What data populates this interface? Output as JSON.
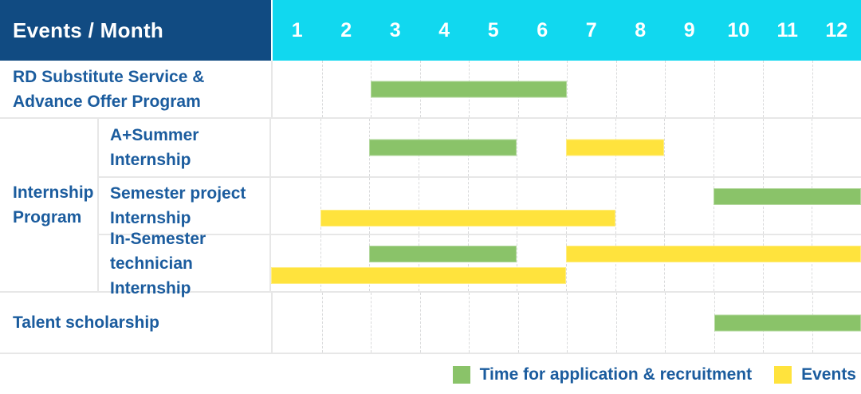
{
  "header": {
    "title": "Events / Month"
  },
  "colors": {
    "header_bg": "#114B82",
    "months_bg": "#11D8EF",
    "label_text": "#1B5C9E",
    "green": "#8AC369",
    "yellow": "#FFE33D",
    "grid_line": "#E7E7E7"
  },
  "legend": {
    "items": [
      {
        "key": "green",
        "color": "#8AC369",
        "label": "Time for application & recruitment"
      },
      {
        "key": "yellow",
        "color": "#FFE33D",
        "label": "Events"
      }
    ]
  },
  "chart_data": {
    "type": "gantt",
    "title": "Events / Month",
    "x_axis": {
      "label": "Month",
      "ticks": [
        1,
        2,
        3,
        4,
        5,
        6,
        7,
        8,
        9,
        10,
        11,
        12
      ],
      "range": [
        1,
        12
      ]
    },
    "series_legend": [
      {
        "key": "green",
        "color": "#8AC369",
        "label": "Time for application & recruitment"
      },
      {
        "key": "yellow",
        "color": "#FFE33D",
        "label": "Events"
      }
    ],
    "groups": [
      {
        "label": "Internship\nProgram",
        "row_indexes": [
          1,
          2,
          3
        ]
      }
    ],
    "rows": [
      {
        "label": "RD Substitute Service &\nAdvance Offer Program",
        "bars": [
          {
            "series": "Time for application & recruitment",
            "color_key": "green",
            "start_month": 3,
            "end_month": 6,
            "lane": "center"
          }
        ]
      },
      {
        "label": "A+Summer\nInternship",
        "bars": [
          {
            "series": "Time for application & recruitment",
            "color_key": "green",
            "start_month": 3,
            "end_month": 5,
            "lane": "center"
          },
          {
            "series": "Events",
            "color_key": "yellow",
            "start_month": 7,
            "end_month": 8,
            "lane": "center"
          }
        ]
      },
      {
        "label": "Semester project\nInternship",
        "bars": [
          {
            "series": "Time for application & recruitment",
            "color_key": "green",
            "start_month": 10,
            "end_month": 12,
            "lane": "top"
          },
          {
            "series": "Events",
            "color_key": "yellow",
            "start_month": 2,
            "end_month": 7,
            "lane": "bottom"
          }
        ]
      },
      {
        "label": "In-Semester\ntechnician Internship",
        "bars": [
          {
            "series": "Time for application & recruitment",
            "color_key": "green",
            "start_month": 3,
            "end_month": 5,
            "lane": "top"
          },
          {
            "series": "Events",
            "color_key": "yellow",
            "start_month": 7,
            "end_month": 12,
            "lane": "top"
          },
          {
            "series": "Events",
            "color_key": "yellow",
            "start_month": 1,
            "end_month": 6,
            "lane": "bottom"
          }
        ]
      },
      {
        "label": "Talent scholarship",
        "bars": [
          {
            "series": "Time for application & recruitment",
            "color_key": "green",
            "start_month": 10,
            "end_month": 12,
            "lane": "center"
          }
        ]
      }
    ]
  }
}
